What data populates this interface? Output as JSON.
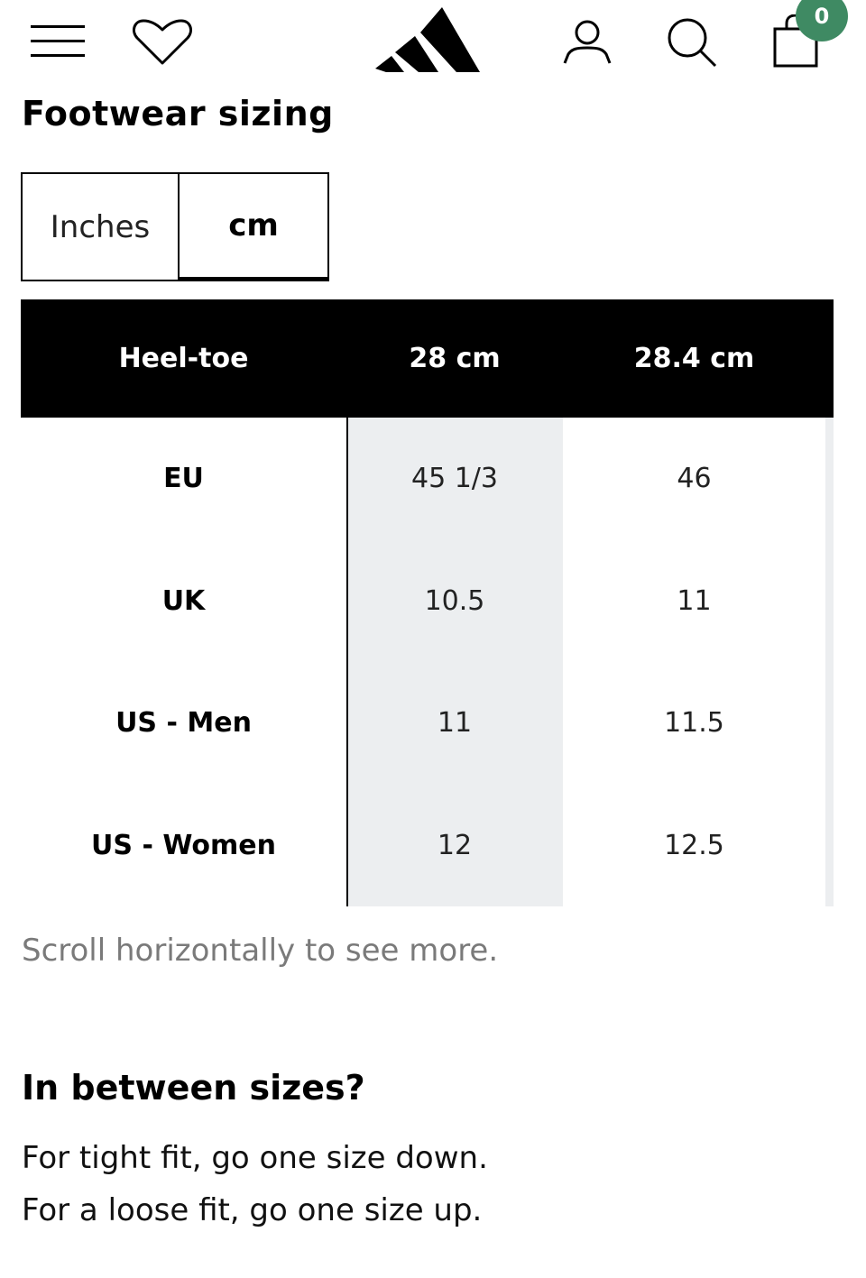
{
  "header": {
    "icons": [
      "menu-icon",
      "heart-icon",
      "brand-logo",
      "account-icon",
      "search-icon",
      "cart-icon"
    ],
    "cart_count": "0",
    "badge_color": "#3f8a63"
  },
  "sizing": {
    "title": "Footwear sizing",
    "units": {
      "inches": "Inches",
      "cm": "cm",
      "selected": "cm"
    },
    "table": {
      "headers": [
        "Heel-toe",
        "28 cm",
        "28.4 cm"
      ],
      "rows": [
        {
          "label": "EU",
          "values": [
            "45 1/3",
            "46"
          ]
        },
        {
          "label": "UK",
          "values": [
            "10.5",
            "11"
          ]
        },
        {
          "label": "US - Men",
          "values": [
            "11",
            "11.5"
          ]
        },
        {
          "label": "US - Women",
          "values": [
            "12",
            "12.5"
          ]
        }
      ],
      "highlight_color": "#eceef0"
    },
    "scroll_hint": "Scroll horizontally to see more."
  },
  "in_between": {
    "title": "In between sizes?",
    "tips": [
      "For tight fit, go one size down.",
      "For a loose fit, go one size up."
    ]
  }
}
